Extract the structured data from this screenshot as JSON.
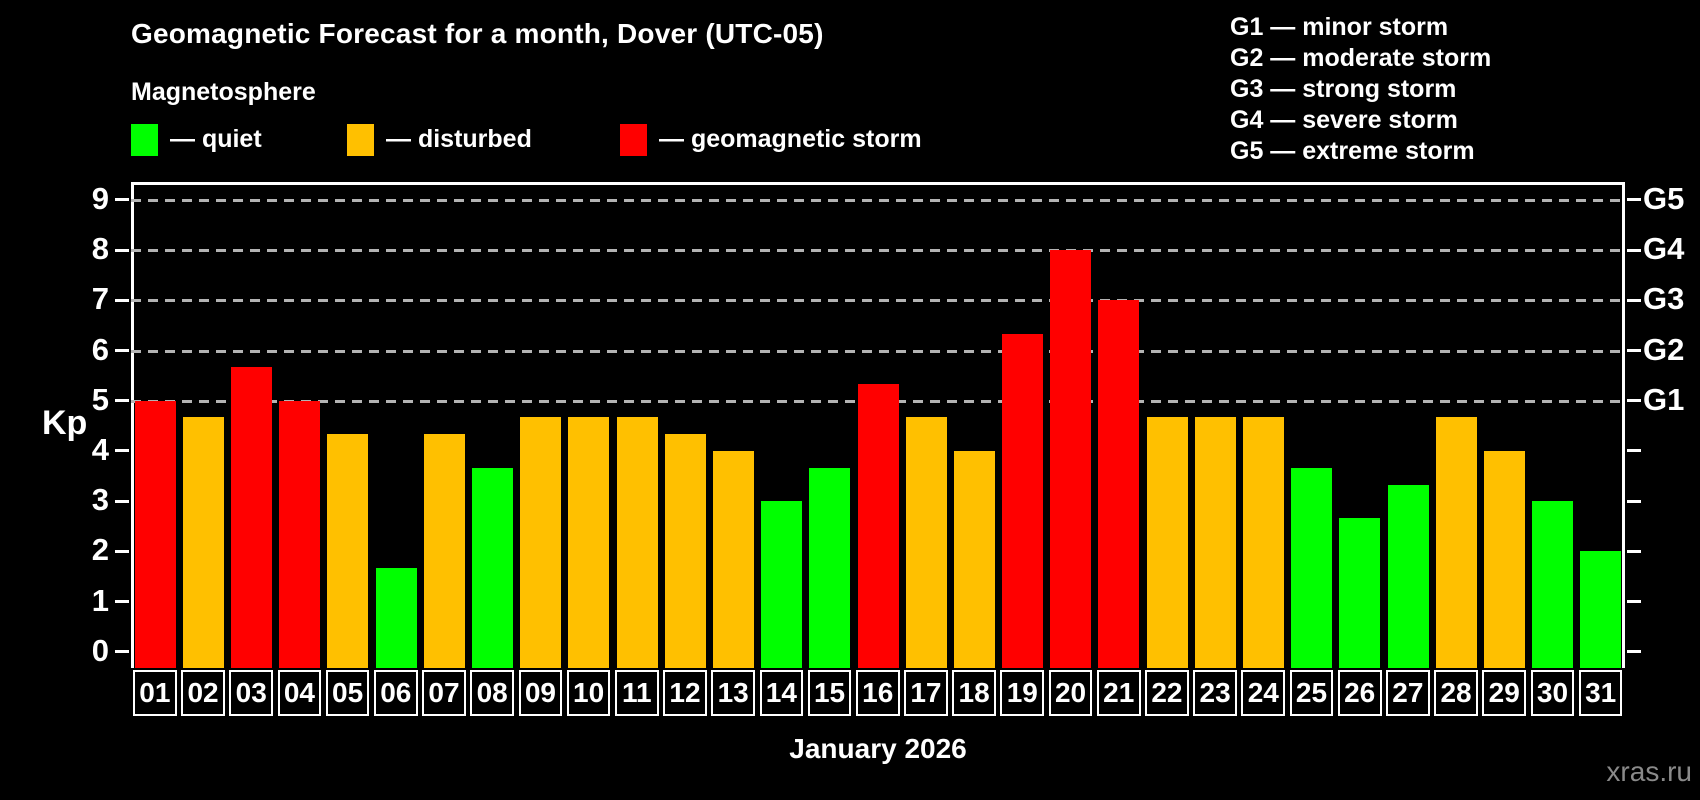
{
  "header": {
    "title": "Geomagnetic Forecast for a month, Dover (UTC-05)",
    "subtitle": "Magnetosphere"
  },
  "legend": {
    "items": [
      {
        "name": "quiet",
        "label": "— quiet",
        "color": "#00ff00"
      },
      {
        "name": "disturbed",
        "label": "— disturbed",
        "color": "#ffc000"
      },
      {
        "name": "storm",
        "label": "— geomagnetic storm",
        "color": "#ff0000"
      }
    ]
  },
  "g_legend": {
    "lines": [
      "G1 — minor storm",
      "G2 — moderate storm",
      "G3 — strong storm",
      "G4 — severe storm",
      "G5 — extreme storm"
    ]
  },
  "axes": {
    "y_left_label": "Kp",
    "x_axis_title": "January 2026"
  },
  "watermark": "xras.ru",
  "chart_data": {
    "type": "bar",
    "title": "Geomagnetic Forecast for a month, Dover (UTC-05)",
    "xlabel": "January 2026",
    "ylabel": "Kp",
    "ylim": [
      0,
      9
    ],
    "y_ticks": [
      0,
      1,
      2,
      3,
      4,
      5,
      6,
      7,
      8,
      9
    ],
    "grid_kp_levels": [
      5,
      6,
      7,
      8,
      9
    ],
    "right_axis_labels": [
      {
        "kp": 5,
        "label": "G1"
      },
      {
        "kp": 6,
        "label": "G2"
      },
      {
        "kp": 7,
        "label": "G3"
      },
      {
        "kp": 8,
        "label": "G4"
      },
      {
        "kp": 9,
        "label": "G5"
      }
    ],
    "grid": "dashed-horizontal-at-storm-levels",
    "legend_position": "top-left",
    "categories": [
      "01",
      "02",
      "03",
      "04",
      "05",
      "06",
      "07",
      "08",
      "09",
      "10",
      "11",
      "12",
      "13",
      "14",
      "15",
      "16",
      "17",
      "18",
      "19",
      "20",
      "21",
      "22",
      "23",
      "24",
      "25",
      "26",
      "27",
      "28",
      "29",
      "30",
      "31"
    ],
    "series": [
      {
        "name": "Kp forecast",
        "values": [
          5.0,
          4.67,
          5.67,
          5.0,
          4.33,
          1.67,
          4.33,
          3.67,
          4.67,
          4.67,
          4.67,
          4.33,
          4.0,
          3.0,
          3.67,
          5.33,
          4.67,
          4.0,
          6.33,
          8.0,
          7.0,
          4.67,
          4.67,
          4.67,
          3.67,
          2.67,
          3.33,
          4.67,
          4.0,
          3.0,
          2.0
        ]
      }
    ],
    "statuses": [
      "storm",
      "disturbed",
      "storm",
      "storm",
      "disturbed",
      "quiet",
      "disturbed",
      "quiet",
      "disturbed",
      "disturbed",
      "disturbed",
      "disturbed",
      "disturbed",
      "quiet",
      "quiet",
      "storm",
      "disturbed",
      "disturbed",
      "storm",
      "storm",
      "storm",
      "disturbed",
      "disturbed",
      "disturbed",
      "quiet",
      "quiet",
      "quiet",
      "disturbed",
      "disturbed",
      "quiet",
      "quiet"
    ],
    "colors": {
      "quiet": "#00ff00",
      "disturbed": "#ffc000",
      "storm": "#ff0000",
      "background": "#000000",
      "text": "#ffffff",
      "gridline": "#b3b3b3",
      "watermark": "#8a8a8a"
    }
  }
}
